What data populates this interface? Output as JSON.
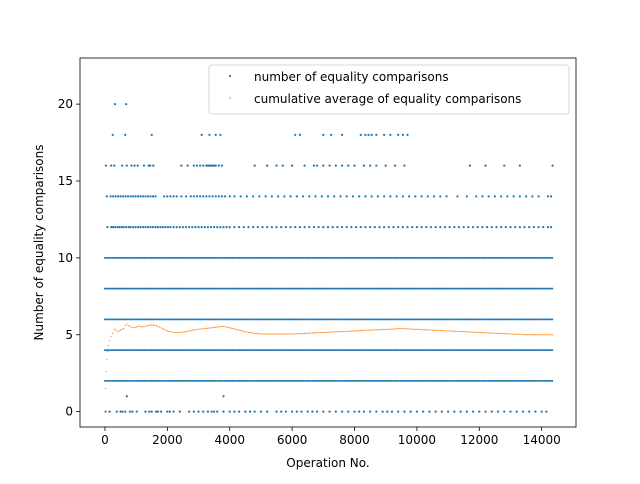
{
  "chart_data": {
    "type": "scatter",
    "title": "",
    "xlabel": "Operation No.",
    "ylabel": "Number of equality comparisons",
    "xlim": [
      -800,
      15100
    ],
    "ylim": [
      -1.0,
      23.0
    ],
    "xticks": [
      0,
      2000,
      4000,
      6000,
      8000,
      10000,
      12000,
      14000
    ],
    "yticks": [
      0,
      5,
      10,
      15,
      20
    ],
    "grid": false,
    "legend": {
      "placement": "top-right"
    },
    "series": [
      {
        "name": "number of equality comparisons",
        "color": "#1f77b4",
        "marker": "dot",
        "x_range": [
          0,
          14350
        ],
        "levels": [
          {
            "y": 0,
            "x": [
              20,
              150,
              380,
              500,
              560,
              650,
              800,
              880,
              1020,
              1300,
              1420,
              1500,
              1640,
              1700,
              1800,
              2000,
              2080,
              2200,
              2400,
              2700,
              2850,
              3000,
              3150,
              3300,
              3420,
              3500,
              3600,
              3800,
              4000,
              4150,
              4300,
              4500,
              4650,
              4800,
              5000,
              5200,
              5500,
              5650,
              5800,
              6000,
              6150,
              6300,
              6500,
              6650,
              6800,
              7000,
              7200,
              7400,
              7600,
              7800,
              8000,
              8150,
              8300,
              8500,
              8700,
              8900,
              9050,
              9200,
              9400,
              9600,
              9800,
              10000,
              10200,
              10400,
              10600,
              10800,
              11000,
              11200,
              11400,
              11600,
              11800,
              12000,
              12200,
              12400,
              12600,
              12800,
              13000,
              13200,
              13400,
              13600,
              13800,
              14000,
              14150
            ]
          },
          {
            "y": 1,
            "x": [
              700,
              3800
            ]
          },
          {
            "y": 2,
            "x_range": [
              0,
              14350
            ]
          },
          {
            "y": 4,
            "x_range": [
              0,
              14350
            ]
          },
          {
            "y": 6,
            "x_range": [
              0,
              14350
            ]
          },
          {
            "y": 8,
            "x_range": [
              0,
              14350
            ]
          },
          {
            "y": 10,
            "x_range": [
              0,
              14350
            ]
          },
          {
            "y": 12,
            "x": [
              80,
              200,
              260,
              330,
              410,
              470,
              540,
              600,
              680,
              760,
              820,
              900,
              980,
              1060,
              1140,
              1220,
              1300,
              1380,
              1460,
              1540,
              1620,
              1700,
              1780,
              1860,
              1940,
              2020,
              2100,
              2200,
              2300,
              2400,
              2500,
              2600,
              2700,
              2800,
              2900,
              3000,
              3100,
              3200,
              3300,
              3400,
              3500,
              3600,
              3700,
              3800,
              3900,
              4000,
              4150,
              4300,
              4450,
              4600,
              4750,
              4900,
              5050,
              5200,
              5350,
              5500,
              5650,
              5800,
              5950,
              6100,
              6250,
              6400,
              6550,
              6700,
              6850,
              7000,
              7150,
              7300,
              7450,
              7600,
              7750,
              7900,
              8050,
              8200,
              8350,
              8500,
              8650,
              8800,
              8950,
              9100,
              9250,
              9400,
              9550,
              9700,
              9850,
              10000,
              10150,
              10300,
              10450,
              10600,
              10750,
              10900,
              11050,
              11200,
              11350,
              11500,
              11650,
              11800,
              11950,
              12100,
              12250,
              12400,
              12550,
              12700,
              12850,
              13000,
              13150,
              13300,
              13450,
              13600,
              13750,
              13900,
              14050,
              14200,
              14300
            ]
          },
          {
            "y": 14,
            "x": [
              60,
              180,
              260,
              340,
              420,
              500,
              580,
              660,
              740,
              820,
              900,
              980,
              1060,
              1140,
              1220,
              1300,
              1380,
              1460,
              1540,
              1620,
              1900,
              2000,
              2100,
              2200,
              2300,
              2450,
              2600,
              2750,
              2850,
              2950,
              3050,
              3150,
              3250,
              3350,
              3450,
              3550,
              3650,
              3750,
              3850,
              4000,
              4150,
              4350,
              4550,
              4750,
              4950,
              5150,
              5350,
              5550,
              5750,
              5950,
              6150,
              6350,
              6550,
              6750,
              6950,
              7150,
              7350,
              7550,
              7750,
              7950,
              8150,
              8350,
              8550,
              8750,
              8950,
              9150,
              9350,
              9550,
              9750,
              9950,
              10150,
              10350,
              10550,
              10750,
              10950,
              11300,
              11600,
              11900,
              12100,
              12300,
              12500,
              12700,
              12900,
              13100,
              13300,
              13500,
              13700,
              13900,
              14200,
              14300
            ]
          },
          {
            "y": 16,
            "x": [
              30,
              200,
              300,
              550,
              700,
              850,
              950,
              1050,
              1250,
              1400,
              1450,
              1550,
              2450,
              2650,
              2850,
              2950,
              3050,
              3150,
              3250,
              3300,
              3350,
              3400,
              3450,
              3500,
              3550,
              3650,
              3750,
              4800,
              5200,
              5500,
              5700,
              6000,
              6400,
              6700,
              6800,
              7000,
              7200,
              7400,
              7600,
              7800,
              8000,
              8300,
              8500,
              8700,
              9000,
              9300,
              9600,
              11700,
              12200,
              12800,
              13300,
              14350
            ]
          },
          {
            "y": 18,
            "x": [
              250,
              650,
              1500,
              3100,
              3350,
              3550,
              3700,
              6100,
              6250,
              7000,
              7250,
              7600,
              8200,
              8350,
              8450,
              8550,
              8700,
              8950,
              9150,
              9400,
              9550,
              9700
            ]
          },
          {
            "y": 20,
            "x": [
              320,
              680
            ]
          }
        ]
      },
      {
        "name": "cumulative average of equality comparisons",
        "color": "#ff7f0e",
        "marker": "dot",
        "x": [
          0,
          20,
          40,
          60,
          80,
          100,
          150,
          200,
          250,
          300,
          350,
          400,
          450,
          500,
          550,
          600,
          650,
          700,
          750,
          800,
          900,
          1000,
          1100,
          1200,
          1300,
          1400,
          1500,
          1600,
          1700,
          1800,
          1900,
          2000,
          2200,
          2400,
          2600,
          2800,
          3000,
          3200,
          3400,
          3600,
          3800,
          4000,
          4200,
          4400,
          4600,
          4800,
          5000,
          5500,
          6000,
          6500,
          7000,
          7500,
          8000,
          8500,
          9000,
          9500,
          10000,
          10500,
          11000,
          11500,
          12000,
          12500,
          13000,
          13500,
          14000,
          14350
        ],
        "y": [
          0.0,
          1.5,
          2.6,
          3.4,
          3.9,
          4.3,
          4.6,
          4.9,
          5.1,
          5.35,
          5.3,
          5.2,
          5.25,
          5.3,
          5.35,
          5.4,
          5.6,
          5.7,
          5.6,
          5.55,
          5.45,
          5.5,
          5.55,
          5.5,
          5.55,
          5.6,
          5.65,
          5.6,
          5.55,
          5.45,
          5.35,
          5.25,
          5.15,
          5.15,
          5.2,
          5.3,
          5.35,
          5.4,
          5.45,
          5.5,
          5.55,
          5.45,
          5.35,
          5.25,
          5.15,
          5.1,
          5.05,
          5.05,
          5.05,
          5.1,
          5.15,
          5.2,
          5.25,
          5.3,
          5.35,
          5.4,
          5.35,
          5.3,
          5.25,
          5.2,
          5.15,
          5.1,
          5.05,
          5.0,
          5.0,
          5.0
        ]
      }
    ]
  }
}
